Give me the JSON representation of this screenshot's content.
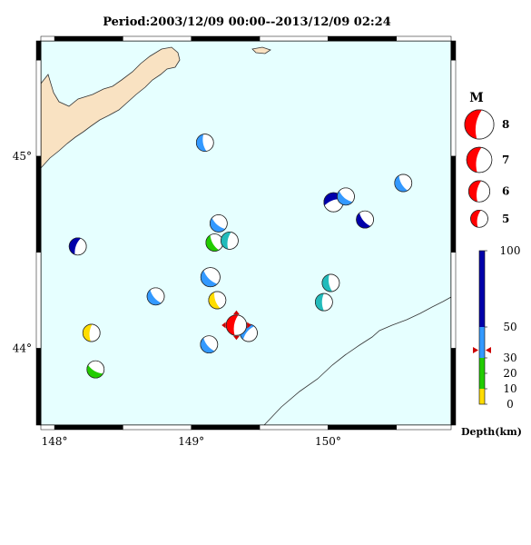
{
  "title": "Period:2003/12/09 00:00--2013/12/09 02:24",
  "lon_range": [
    147.9,
    150.9
  ],
  "lat_range": [
    43.6,
    45.6
  ],
  "x_ticks": [
    {
      "value": 148,
      "label": "148°"
    },
    {
      "value": 149,
      "label": "149°"
    },
    {
      "value": 150,
      "label": "150°"
    }
  ],
  "y_ticks": [
    {
      "value": 44,
      "label": "44°"
    },
    {
      "value": 45,
      "label": "45°"
    }
  ],
  "colors": {
    "sea": "#e6ffff",
    "land": "#f9e2c2",
    "coast": "#333333",
    "mag_legend": "#ff0000"
  },
  "depth_scale": {
    "title": "Depth(km)",
    "bands": [
      {
        "from": 0,
        "to": 10,
        "color": "#ffdd00"
      },
      {
        "from": 10,
        "to": 30,
        "color": "#22cc00"
      },
      {
        "from": 30,
        "to": 50,
        "color": "#3399ff"
      },
      {
        "from": 50,
        "to": 100,
        "color": "#0000aa"
      }
    ],
    "tick_labels": [
      {
        "value": 0,
        "label": "0"
      },
      {
        "value": 10,
        "label": "10"
      },
      {
        "value": 20,
        "label": "20"
      },
      {
        "value": 30,
        "label": "30"
      },
      {
        "value": 50,
        "label": "50"
      },
      {
        "value": 100,
        "label": "100"
      }
    ],
    "marker_depth": 35
  },
  "magnitude_legend": {
    "title": "M",
    "items": [
      {
        "mag": 8,
        "label": "8"
      },
      {
        "mag": 7,
        "label": "7"
      },
      {
        "mag": 6,
        "label": "6"
      },
      {
        "mag": 5,
        "label": "5"
      }
    ]
  },
  "events": [
    {
      "lon": 149.1,
      "lat": 45.07,
      "mag": 5.0,
      "color": "#3399ff",
      "rot": 80,
      "main": false
    },
    {
      "lon": 148.17,
      "lat": 44.53,
      "mag": 5.0,
      "color": "#0000aa",
      "rot": 110,
      "main": false
    },
    {
      "lon": 148.74,
      "lat": 44.27,
      "mag": 5.0,
      "color": "#3399ff",
      "rot": 50,
      "main": false
    },
    {
      "lon": 148.27,
      "lat": 44.08,
      "mag": 5.0,
      "color": "#ffdd00",
      "rot": 95,
      "main": false
    },
    {
      "lon": 148.3,
      "lat": 43.89,
      "mag": 5.0,
      "color": "#22cc00",
      "rot": 30,
      "main": false
    },
    {
      "lon": 149.2,
      "lat": 44.65,
      "mag": 5.0,
      "color": "#3399ff",
      "rot": 40,
      "main": false
    },
    {
      "lon": 149.17,
      "lat": 44.55,
      "mag": 5.0,
      "color": "#22cc00",
      "rot": 60,
      "main": false
    },
    {
      "lon": 149.28,
      "lat": 44.56,
      "mag": 5.0,
      "color": "#22bbbb",
      "rot": 100,
      "main": false
    },
    {
      "lon": 149.14,
      "lat": 44.37,
      "mag": 5.5,
      "color": "#3399ff",
      "rot": 45,
      "main": false
    },
    {
      "lon": 149.19,
      "lat": 44.25,
      "mag": 5.0,
      "color": "#ffdd00",
      "rot": 70,
      "main": false
    },
    {
      "lon": 149.13,
      "lat": 44.02,
      "mag": 5.0,
      "color": "#3399ff",
      "rot": 50,
      "main": false
    },
    {
      "lon": 149.42,
      "lat": 44.08,
      "mag": 5.0,
      "color": "#3399ff",
      "rot": 130,
      "main": false
    },
    {
      "lon": 149.33,
      "lat": 44.12,
      "mag": 5.8,
      "color": "#ff0000",
      "rot": 100,
      "main": true
    },
    {
      "lon": 150.04,
      "lat": 44.76,
      "mag": 5.5,
      "color": "#0000aa",
      "rot": 160,
      "main": false
    },
    {
      "lon": 150.13,
      "lat": 44.79,
      "mag": 5.0,
      "color": "#3399ff",
      "rot": 40,
      "main": false
    },
    {
      "lon": 150.27,
      "lat": 44.67,
      "mag": 5.0,
      "color": "#0000aa",
      "rot": 50,
      "main": false
    },
    {
      "lon": 150.55,
      "lat": 44.86,
      "mag": 5.0,
      "color": "#3399ff",
      "rot": 60,
      "main": false
    },
    {
      "lon": 150.02,
      "lat": 44.34,
      "mag": 5.0,
      "color": "#22bbbb",
      "rot": 80,
      "main": false
    },
    {
      "lon": 149.97,
      "lat": 44.24,
      "mag": 5.0,
      "color": "#22bbbb",
      "rot": 90,
      "main": false
    }
  ]
}
